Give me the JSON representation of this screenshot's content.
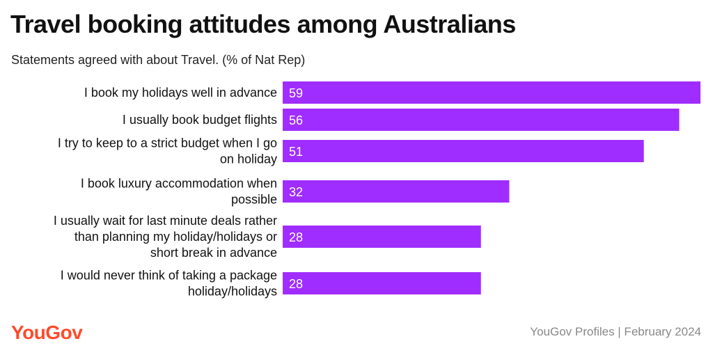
{
  "header": {
    "title": "Travel booking attitudes among Australians",
    "subtitle": "Statements agreed with about Travel. (% of Nat Rep)"
  },
  "footer": {
    "brand": "YouGov",
    "source": "YouGov Profiles | February 2024"
  },
  "chart_data": {
    "type": "bar",
    "orientation": "horizontal",
    "categories": [
      "I book my holidays well in advance",
      "I usually book budget flights",
      "I try to keep to a strict budget when I go on holiday",
      "I book luxury accommodation when possible",
      "I usually wait for last minute deals rather than planning my holiday/holidays or short break in advance",
      "I would never think of taking a package holiday/holidays"
    ],
    "category_lines": [
      [
        "I book my holidays well in advance"
      ],
      [
        "I usually book budget flights"
      ],
      [
        "I try to keep to a strict budget when I go",
        "on holiday"
      ],
      [
        "I book luxury accommodation when",
        "possible"
      ],
      [
        "I usually wait for last minute deals rather",
        "than planning my holiday/holidays or",
        "short break in advance"
      ],
      [
        "I would never think of taking a package",
        "holiday/holidays"
      ]
    ],
    "values": [
      59,
      56,
      51,
      32,
      28,
      28
    ],
    "xlim": [
      0,
      59
    ],
    "bar_color": "#a02dff",
    "label_color": "#ffffff",
    "grid": false,
    "legend": "none"
  }
}
